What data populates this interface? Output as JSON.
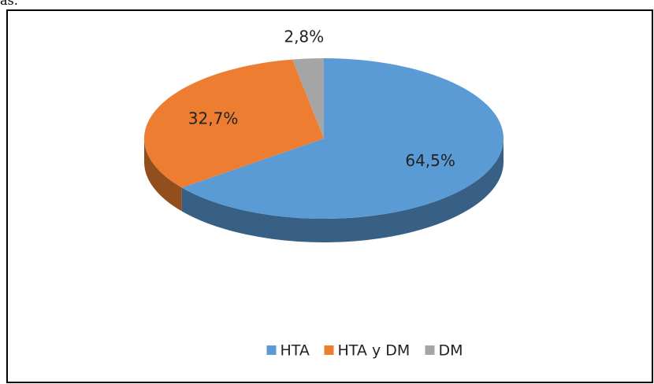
{
  "header_text": "as.",
  "chart_data": {
    "type": "pie3d",
    "categories": [
      "HTA",
      "HTA y DM",
      "DM"
    ],
    "values": [
      64.5,
      32.7,
      2.8
    ],
    "value_labels": [
      "64,5%",
      "32,7%",
      "2,8%"
    ],
    "colors": [
      "#5b9bd5",
      "#ed7d31",
      "#a5a5a5"
    ],
    "legend": "bottom"
  }
}
